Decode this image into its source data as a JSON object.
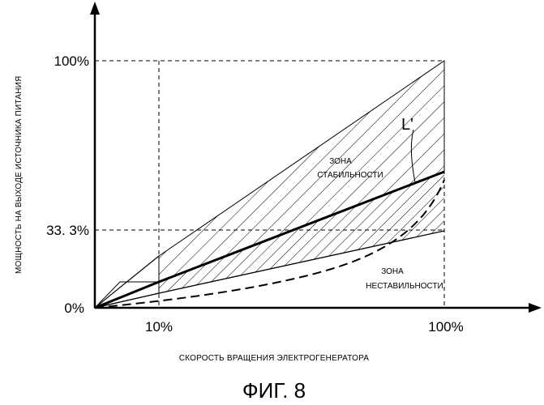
{
  "axes": {
    "y_label": "МОЩНОСТЬ НА ВЫХОДЕ ИСТОЧНИКА ПИТАНИЯ",
    "x_label": "СКОРОСТЬ ВРАЩЕНИЯ ЭЛЕКТРОГЕНЕРАТОРА",
    "y_ticks": [
      "100%",
      "33. 3%",
      "0%"
    ],
    "x_ticks": [
      "10%",
      "100%"
    ]
  },
  "zones": {
    "stable_line1": "ЗОНА",
    "stable_line2": "СТАБИЛЬНОСТИ",
    "unstable_line1": "ЗОНА",
    "unstable_line2": "НЕСТАВИЛЬНОСТИ"
  },
  "curve_label": "L'",
  "figure_caption": "ФИГ. 8"
}
